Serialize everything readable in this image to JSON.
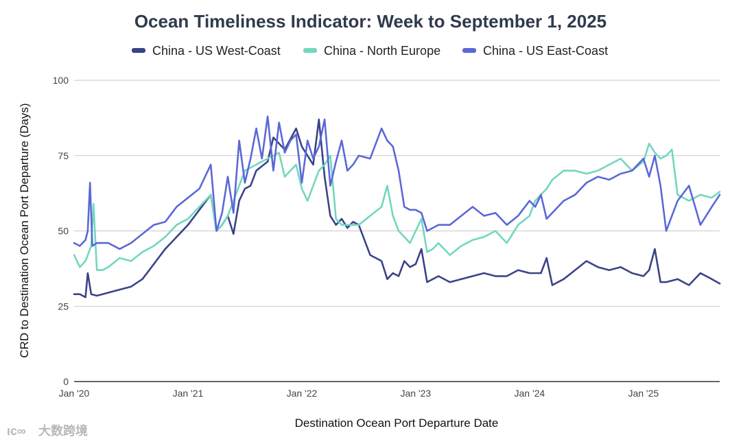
{
  "chart_data": {
    "type": "line",
    "title": "Ocean Timeliness Indicator: Week to September 1, 2025",
    "xlabel": "Destination Ocean Port Departure Date",
    "ylabel": "CRD to Destination Ocean Port Departure (Days)",
    "ylim": [
      0,
      100
    ],
    "yticks": [
      0,
      25,
      50,
      75,
      100
    ],
    "xlim": [
      2020.0,
      2025.67
    ],
    "xticks": [
      {
        "value": 2020.0,
        "label": "Jan '20"
      },
      {
        "value": 2021.0,
        "label": "Jan '21"
      },
      {
        "value": 2022.0,
        "label": "Jan '22"
      },
      {
        "value": 2023.0,
        "label": "Jan '23"
      },
      {
        "value": 2024.0,
        "label": "Jan '24"
      },
      {
        "value": 2025.0,
        "label": "Jan '25"
      }
    ],
    "grid": true,
    "legend_position": "top",
    "series": [
      {
        "name": "China - US West-Coast",
        "color": "#3a4387",
        "x": [
          2020.0,
          2020.05,
          2020.1,
          2020.12,
          2020.15,
          2020.2,
          2020.25,
          2020.35,
          2020.45,
          2020.5,
          2020.6,
          2020.7,
          2020.8,
          2020.9,
          2021.0,
          2021.1,
          2021.2,
          2021.25,
          2021.3,
          2021.35,
          2021.4,
          2021.45,
          2021.5,
          2021.55,
          2021.6,
          2021.7,
          2021.75,
          2021.85,
          2021.95,
          2022.0,
          2022.05,
          2022.1,
          2022.15,
          2022.2,
          2022.25,
          2022.3,
          2022.35,
          2022.4,
          2022.45,
          2022.5,
          2022.55,
          2022.6,
          2022.7,
          2022.75,
          2022.8,
          2022.85,
          2022.9,
          2022.95,
          2023.0,
          2023.05,
          2023.1,
          2023.2,
          2023.3,
          2023.4,
          2023.5,
          2023.6,
          2023.7,
          2023.8,
          2023.9,
          2024.0,
          2024.1,
          2024.15,
          2024.2,
          2024.3,
          2024.4,
          2024.5,
          2024.6,
          2024.7,
          2024.8,
          2024.9,
          2025.0,
          2025.05,
          2025.1,
          2025.15,
          2025.2,
          2025.3,
          2025.4,
          2025.5,
          2025.6,
          2025.67
        ],
        "values": [
          29,
          29,
          28,
          36,
          29,
          28.5,
          29,
          30,
          31,
          31.5,
          34,
          39,
          44,
          48,
          52,
          57,
          62,
          50,
          52,
          55,
          49,
          60,
          64,
          65,
          70,
          73,
          81,
          77,
          84,
          78,
          75,
          72,
          87,
          68,
          55,
          52,
          54,
          51,
          53,
          52,
          47,
          42,
          40,
          34,
          36,
          35,
          40,
          38,
          39,
          44,
          33,
          35,
          33,
          34,
          35,
          36,
          35,
          35,
          37,
          36,
          36,
          41,
          32,
          34,
          37,
          40,
          38,
          37,
          38,
          36,
          35,
          37,
          44,
          33,
          33,
          34,
          32,
          36,
          34,
          32.5
        ]
      },
      {
        "name": "China - North Europe",
        "color": "#72d7bf",
        "x": [
          2020.0,
          2020.05,
          2020.1,
          2020.15,
          2020.17,
          2020.2,
          2020.25,
          2020.3,
          2020.4,
          2020.5,
          2020.6,
          2020.7,
          2020.8,
          2020.9,
          2021.0,
          2021.1,
          2021.2,
          2021.25,
          2021.3,
          2021.35,
          2021.4,
          2021.5,
          2021.6,
          2021.7,
          2021.8,
          2021.85,
          2021.9,
          2021.95,
          2022.0,
          2022.05,
          2022.1,
          2022.15,
          2022.2,
          2022.25,
          2022.3,
          2022.35,
          2022.4,
          2022.5,
          2022.6,
          2022.7,
          2022.75,
          2022.8,
          2022.85,
          2022.9,
          2022.95,
          2023.0,
          2023.05,
          2023.1,
          2023.15,
          2023.2,
          2023.3,
          2023.4,
          2023.5,
          2023.6,
          2023.7,
          2023.8,
          2023.9,
          2024.0,
          2024.05,
          2024.1,
          2024.15,
          2024.2,
          2024.3,
          2024.4,
          2024.5,
          2024.6,
          2024.7,
          2024.8,
          2024.9,
          2025.0,
          2025.05,
          2025.1,
          2025.15,
          2025.2,
          2025.25,
          2025.3,
          2025.4,
          2025.5,
          2025.6,
          2025.67
        ],
        "values": [
          42,
          38,
          40,
          45,
          59,
          37,
          37,
          38,
          41,
          40,
          43,
          45,
          48,
          52,
          54,
          58,
          62,
          50,
          52,
          55,
          60,
          70,
          72,
          74,
          76,
          68,
          70,
          72,
          64,
          60,
          65,
          70,
          72,
          75,
          54,
          52,
          52,
          52,
          55,
          58,
          65,
          55,
          50,
          48,
          46,
          50,
          54,
          43,
          44,
          46,
          42,
          45,
          47,
          48,
          50,
          46,
          52,
          55,
          60,
          62,
          64,
          67,
          70,
          70,
          69,
          70,
          72,
          74,
          70,
          73,
          79,
          76,
          74,
          75,
          77,
          62,
          60,
          62,
          61,
          63
        ]
      },
      {
        "name": "China - US East-Coast",
        "color": "#5b68d6",
        "x": [
          2020.0,
          2020.05,
          2020.1,
          2020.12,
          2020.14,
          2020.16,
          2020.2,
          2020.3,
          2020.4,
          2020.5,
          2020.6,
          2020.7,
          2020.8,
          2020.9,
          2021.0,
          2021.1,
          2021.2,
          2021.25,
          2021.3,
          2021.35,
          2021.4,
          2021.45,
          2021.5,
          2021.55,
          2021.6,
          2021.65,
          2021.7,
          2021.75,
          2021.8,
          2021.85,
          2021.9,
          2021.95,
          2022.0,
          2022.05,
          2022.1,
          2022.15,
          2022.2,
          2022.25,
          2022.3,
          2022.35,
          2022.4,
          2022.45,
          2022.5,
          2022.6,
          2022.7,
          2022.75,
          2022.8,
          2022.85,
          2022.9,
          2022.95,
          2023.0,
          2023.05,
          2023.1,
          2023.2,
          2023.3,
          2023.4,
          2023.5,
          2023.6,
          2023.7,
          2023.8,
          2023.9,
          2024.0,
          2024.05,
          2024.1,
          2024.15,
          2024.2,
          2024.3,
          2024.4,
          2024.5,
          2024.6,
          2024.7,
          2024.8,
          2024.9,
          2025.0,
          2025.05,
          2025.1,
          2025.15,
          2025.2,
          2025.25,
          2025.3,
          2025.4,
          2025.5,
          2025.6,
          2025.67
        ],
        "values": [
          46,
          45,
          47,
          50,
          66,
          45,
          46,
          46,
          44,
          46,
          49,
          52,
          53,
          58,
          61,
          64,
          72,
          50,
          56,
          68,
          56,
          80,
          66,
          74,
          84,
          74,
          88,
          70,
          86,
          76,
          80,
          82,
          66,
          80,
          74,
          78,
          87,
          65,
          73,
          80,
          70,
          72,
          75,
          74,
          84,
          80,
          78,
          70,
          58,
          57,
          57,
          56,
          50,
          52,
          52,
          55,
          58,
          55,
          56,
          52,
          55,
          60,
          58,
          62,
          54,
          56,
          60,
          62,
          66,
          68,
          67,
          69,
          70,
          74,
          68,
          75,
          65,
          50,
          55,
          60,
          65,
          52,
          58,
          62
        ]
      }
    ]
  },
  "watermark": {
    "logo_text": "ιc∞",
    "label": "大数跨境"
  }
}
